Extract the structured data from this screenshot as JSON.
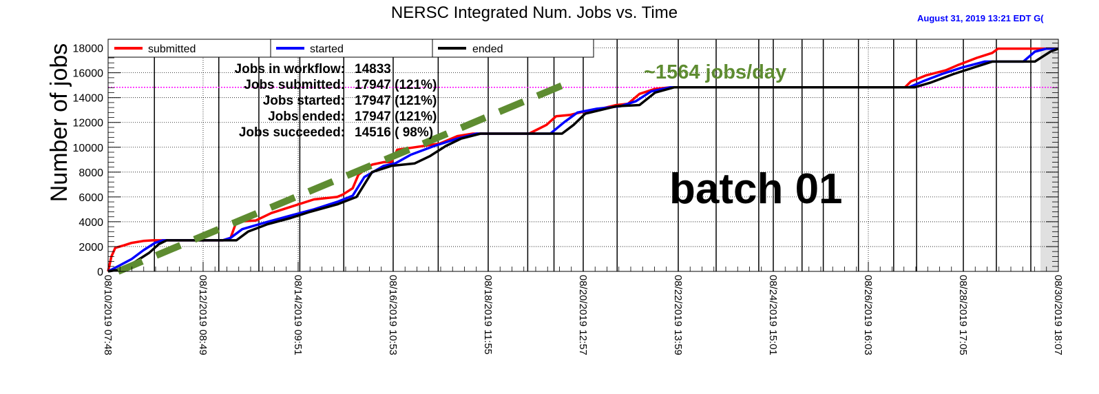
{
  "chart_data": {
    "type": "line",
    "title": "NERSC Integrated Num. Jobs vs. Time",
    "timestamp": "August 31, 2019  13:21 EDT G(",
    "ylabel": "Number of jobs",
    "ylim": [
      0,
      18700
    ],
    "y_ticks": [
      0,
      2000,
      4000,
      6000,
      8000,
      10000,
      12000,
      14000,
      16000,
      18000
    ],
    "x_range": [
      "2019-08-10 07:48",
      "2019-08-30 18:07"
    ],
    "x_tick_labels": [
      "08/10/2019 07:48",
      "08/12/2019 08:49",
      "08/14/2019 09:51",
      "08/16/2019 10:53",
      "08/18/2019 11:55",
      "08/20/2019 12:57",
      "08/22/2019 13:59",
      "08/24/2019 15:01",
      "08/26/2019 16:03",
      "08/28/2019 17:05",
      "08/30/2019 18:07"
    ],
    "x_tick_values": [
      "2019-08-10 07:48",
      "2019-08-12 08:49",
      "2019-08-14 09:51",
      "2019-08-16 10:53",
      "2019-08-18 11:55",
      "2019-08-20 12:57",
      "2019-08-22 13:59",
      "2019-08-24 15:01",
      "2019-08-26 16:03",
      "2019-08-28 17:05",
      "2019-08-30 18:07"
    ],
    "vertical_markers": [
      "2019-08-11 07:41",
      "2019-08-12 16:55",
      "2019-08-13 13:35",
      "2019-08-14 10:43",
      "2019-08-15 09:24",
      "2019-08-16 10:53",
      "2019-08-17 10:07",
      "2019-08-18 11:55",
      "2019-08-19 08:19",
      "2019-08-19 21:52",
      "2019-08-20 12:57",
      "2019-08-21 06:27",
      "2019-08-22 13:59",
      "2019-08-23 09:32",
      "2019-08-24 07:31",
      "2019-08-24 15:01",
      "2019-08-25 05:51",
      "2019-08-25 16:49",
      "2019-08-26 10:58",
      "2019-08-27 05:08",
      "2019-08-27 16:58",
      "2019-08-28 17:05",
      "2019-08-29 10:07",
      "2019-08-30 03:54"
    ],
    "reference_line": {
      "y": 14833
    },
    "grid": true,
    "legend_position": "top",
    "series": [
      {
        "name": "submitted",
        "color": "#ff0000",
        "points": [
          [
            "2019-08-10 07:48",
            0
          ],
          [
            "2019-08-10 09:30",
            1200
          ],
          [
            "2019-08-10 11:30",
            1900
          ],
          [
            "2019-08-10 16:00",
            2100
          ],
          [
            "2019-08-10 20:00",
            2300
          ],
          [
            "2019-08-11 02:00",
            2450
          ],
          [
            "2019-08-11 07:00",
            2500
          ],
          [
            "2019-08-12 19:00",
            2500
          ],
          [
            "2019-08-12 23:00",
            2700
          ],
          [
            "2019-08-13 02:00",
            4000
          ],
          [
            "2019-08-13 12:00",
            4100
          ],
          [
            "2019-08-13 20:00",
            4700
          ],
          [
            "2019-08-14 06:00",
            5200
          ],
          [
            "2019-08-14 18:00",
            5800
          ],
          [
            "2019-08-15 06:00",
            6000
          ],
          [
            "2019-08-15 09:00",
            6200
          ],
          [
            "2019-08-15 14:00",
            6700
          ],
          [
            "2019-08-15 17:00",
            7800
          ],
          [
            "2019-08-16 00:00",
            8600
          ],
          [
            "2019-08-16 06:00",
            8800
          ],
          [
            "2019-08-16 10:00",
            8800
          ],
          [
            "2019-08-16 13:00",
            9800
          ],
          [
            "2019-08-16 22:00",
            10000
          ],
          [
            "2019-08-17 11:00",
            10300
          ],
          [
            "2019-08-17 20:00",
            10900
          ],
          [
            "2019-08-18 04:00",
            11100
          ],
          [
            "2019-08-18 12:00",
            11100
          ],
          [
            "2019-08-19 09:00",
            11100
          ],
          [
            "2019-08-19 18:00",
            11800
          ],
          [
            "2019-08-19 23:00",
            12500
          ],
          [
            "2019-08-20 06:00",
            12600
          ],
          [
            "2019-08-20 14:00",
            12900
          ],
          [
            "2019-08-20 22:00",
            13100
          ],
          [
            "2019-08-21 06:00",
            13400
          ],
          [
            "2019-08-21 12:00",
            13500
          ],
          [
            "2019-08-21 18:00",
            14300
          ],
          [
            "2019-08-22 02:00",
            14700
          ],
          [
            "2019-08-22 10:00",
            14833
          ],
          [
            "2019-08-27 11:00",
            14833
          ],
          [
            "2019-08-27 14:00",
            15300
          ],
          [
            "2019-08-27 22:00",
            15800
          ],
          [
            "2019-08-28 08:00",
            16200
          ],
          [
            "2019-08-28 14:00",
            16600
          ],
          [
            "2019-08-29 00:00",
            17200
          ],
          [
            "2019-08-29 08:00",
            17600
          ],
          [
            "2019-08-29 11:00",
            17947
          ],
          [
            "2019-08-30 18:07",
            17947
          ]
        ]
      },
      {
        "name": "started",
        "color": "#0000ff",
        "points": [
          [
            "2019-08-10 07:48",
            0
          ],
          [
            "2019-08-10 14:00",
            500
          ],
          [
            "2019-08-10 20:00",
            1000
          ],
          [
            "2019-08-11 02:00",
            1700
          ],
          [
            "2019-08-11 08:00",
            2300
          ],
          [
            "2019-08-11 12:00",
            2500
          ],
          [
            "2019-08-12 19:00",
            2500
          ],
          [
            "2019-08-12 23:00",
            2700
          ],
          [
            "2019-08-13 05:00",
            3400
          ],
          [
            "2019-08-13 16:00",
            3900
          ],
          [
            "2019-08-14 06:00",
            4500
          ],
          [
            "2019-08-14 18:00",
            5000
          ],
          [
            "2019-08-15 06:00",
            5600
          ],
          [
            "2019-08-15 14:00",
            6100
          ],
          [
            "2019-08-15 20:00",
            7600
          ],
          [
            "2019-08-16 06:00",
            8500
          ],
          [
            "2019-08-16 12:00",
            8700
          ],
          [
            "2019-08-16 20:00",
            9400
          ],
          [
            "2019-08-17 08:00",
            10100
          ],
          [
            "2019-08-17 20:00",
            10700
          ],
          [
            "2019-08-18 06:00",
            11100
          ],
          [
            "2019-08-19 20:00",
            11100
          ],
          [
            "2019-08-20 03:00",
            12000
          ],
          [
            "2019-08-20 10:00",
            12800
          ],
          [
            "2019-08-20 20:00",
            13100
          ],
          [
            "2019-08-21 08:00",
            13300
          ],
          [
            "2019-08-21 16:00",
            13700
          ],
          [
            "2019-08-22 00:00",
            14500
          ],
          [
            "2019-08-22 10:00",
            14833
          ],
          [
            "2019-08-27 13:00",
            14833
          ],
          [
            "2019-08-27 20:00",
            15300
          ],
          [
            "2019-08-28 06:00",
            15900
          ],
          [
            "2019-08-28 16:00",
            16400
          ],
          [
            "2019-08-29 04:00",
            16900
          ],
          [
            "2019-08-30 00:00",
            16900
          ],
          [
            "2019-08-30 06:00",
            17700
          ],
          [
            "2019-08-30 12:00",
            17947
          ],
          [
            "2019-08-30 18:07",
            17947
          ]
        ]
      },
      {
        "name": "ended",
        "color": "#000000",
        "points": [
          [
            "2019-08-10 07:48",
            0
          ],
          [
            "2019-08-10 16:00",
            200
          ],
          [
            "2019-08-10 22:00",
            800
          ],
          [
            "2019-08-11 05:00",
            1500
          ],
          [
            "2019-08-11 10:00",
            2200
          ],
          [
            "2019-08-11 14:00",
            2500
          ],
          [
            "2019-08-13 02:00",
            2500
          ],
          [
            "2019-08-13 08:00",
            3200
          ],
          [
            "2019-08-13 18:00",
            3800
          ],
          [
            "2019-08-14 06:00",
            4300
          ],
          [
            "2019-08-14 16:00",
            4800
          ],
          [
            "2019-08-15 06:00",
            5400
          ],
          [
            "2019-08-15 16:00",
            6000
          ],
          [
            "2019-08-16 00:00",
            8000
          ],
          [
            "2019-08-16 10:00",
            8500
          ],
          [
            "2019-08-16 22:00",
            8700
          ],
          [
            "2019-08-17 06:00",
            9300
          ],
          [
            "2019-08-17 14:00",
            10100
          ],
          [
            "2019-08-17 22:00",
            10700
          ],
          [
            "2019-08-18 08:00",
            11100
          ],
          [
            "2019-08-20 02:00",
            11100
          ],
          [
            "2019-08-20 08:00",
            11800
          ],
          [
            "2019-08-20 14:00",
            12700
          ],
          [
            "2019-08-20 22:00",
            13000
          ],
          [
            "2019-08-21 06:00",
            13300
          ],
          [
            "2019-08-21 18:00",
            13400
          ],
          [
            "2019-08-22 02:00",
            14400
          ],
          [
            "2019-08-22 12:00",
            14833
          ],
          [
            "2019-08-27 16:00",
            14833
          ],
          [
            "2019-08-28 00:00",
            15200
          ],
          [
            "2019-08-28 12:00",
            15900
          ],
          [
            "2019-08-29 00:00",
            16500
          ],
          [
            "2019-08-29 08:00",
            16900
          ],
          [
            "2019-08-30 06:00",
            16900
          ],
          [
            "2019-08-30 14:00",
            17700
          ],
          [
            "2019-08-30 18:07",
            17947
          ]
        ]
      }
    ],
    "trend_line": {
      "label": "~1564 jobs/day",
      "color": "#5e8c31",
      "start": [
        "2019-08-10 13:00",
        0
      ],
      "end": [
        "2019-08-20 07:00",
        15300
      ]
    },
    "stats": [
      {
        "label": "Jobs in workflow:",
        "value": "14833"
      },
      {
        "label": "Jobs submitted:",
        "value": "17947 (121%)"
      },
      {
        "label": "Jobs started:",
        "value": "17947 (121%)"
      },
      {
        "label": "Jobs ended:",
        "value": "17947 (121%)"
      },
      {
        "label": "Jobs succeeded:",
        "value": "14516 ( 98%)"
      }
    ],
    "annotation": "batch 01"
  }
}
